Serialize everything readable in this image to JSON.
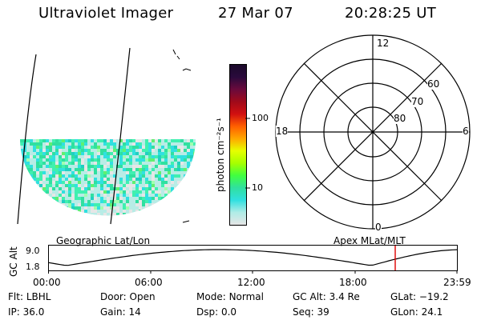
{
  "header": {
    "instrument": "Ultraviolet Imager",
    "date": "27 Mar 07",
    "time": "20:28:25 UT"
  },
  "colorbar": {
    "unit_label": "photon cm⁻²s⁻¹",
    "ticks": [
      "100",
      "10"
    ],
    "colors": [
      "#1a0a2a",
      "#2a0a3c",
      "#6a0a3c",
      "#a00a1a",
      "#d21010",
      "#ff6000",
      "#ffa800",
      "#e6ff00",
      "#a6ff00",
      "#40ff40",
      "#30e0a0",
      "#30e0e0",
      "#b0ece6",
      "#e6e6e6"
    ]
  },
  "polar": {
    "hour_labels": {
      "top": "12",
      "left": "18",
      "right": "6",
      "bottom": "0"
    },
    "lat_labels": [
      "60",
      "70",
      "80"
    ]
  },
  "timeline": {
    "left_title": "Geographic Lat/Lon",
    "right_title": "Apex MLat/MLT",
    "y_axis_label": "GC Alt",
    "y_ticks": [
      "9.0",
      "1.8"
    ],
    "x_ticks": [
      "00:00",
      "06:00",
      "12:00",
      "18:00",
      "23:59"
    ],
    "current_marker_color": "#dd0000"
  },
  "status": {
    "row1": [
      {
        "label": "Flt:",
        "value": "LBHL"
      },
      {
        "label": "Door:",
        "value": "Open"
      },
      {
        "label": "Mode:",
        "value": "Normal"
      },
      {
        "label": "GC Alt:",
        "value": "3.4 Re"
      },
      {
        "label": "GLat:",
        "value": "−19.2"
      }
    ],
    "row2": [
      {
        "label": "IP:",
        "value": "36.0"
      },
      {
        "label": "Gain:",
        "value": "14"
      },
      {
        "label": "Dsp:",
        "value": "0.0"
      },
      {
        "label": "Seq:",
        "value": "39"
      },
      {
        "label": "GLon:",
        "value": "24.1"
      }
    ]
  }
}
